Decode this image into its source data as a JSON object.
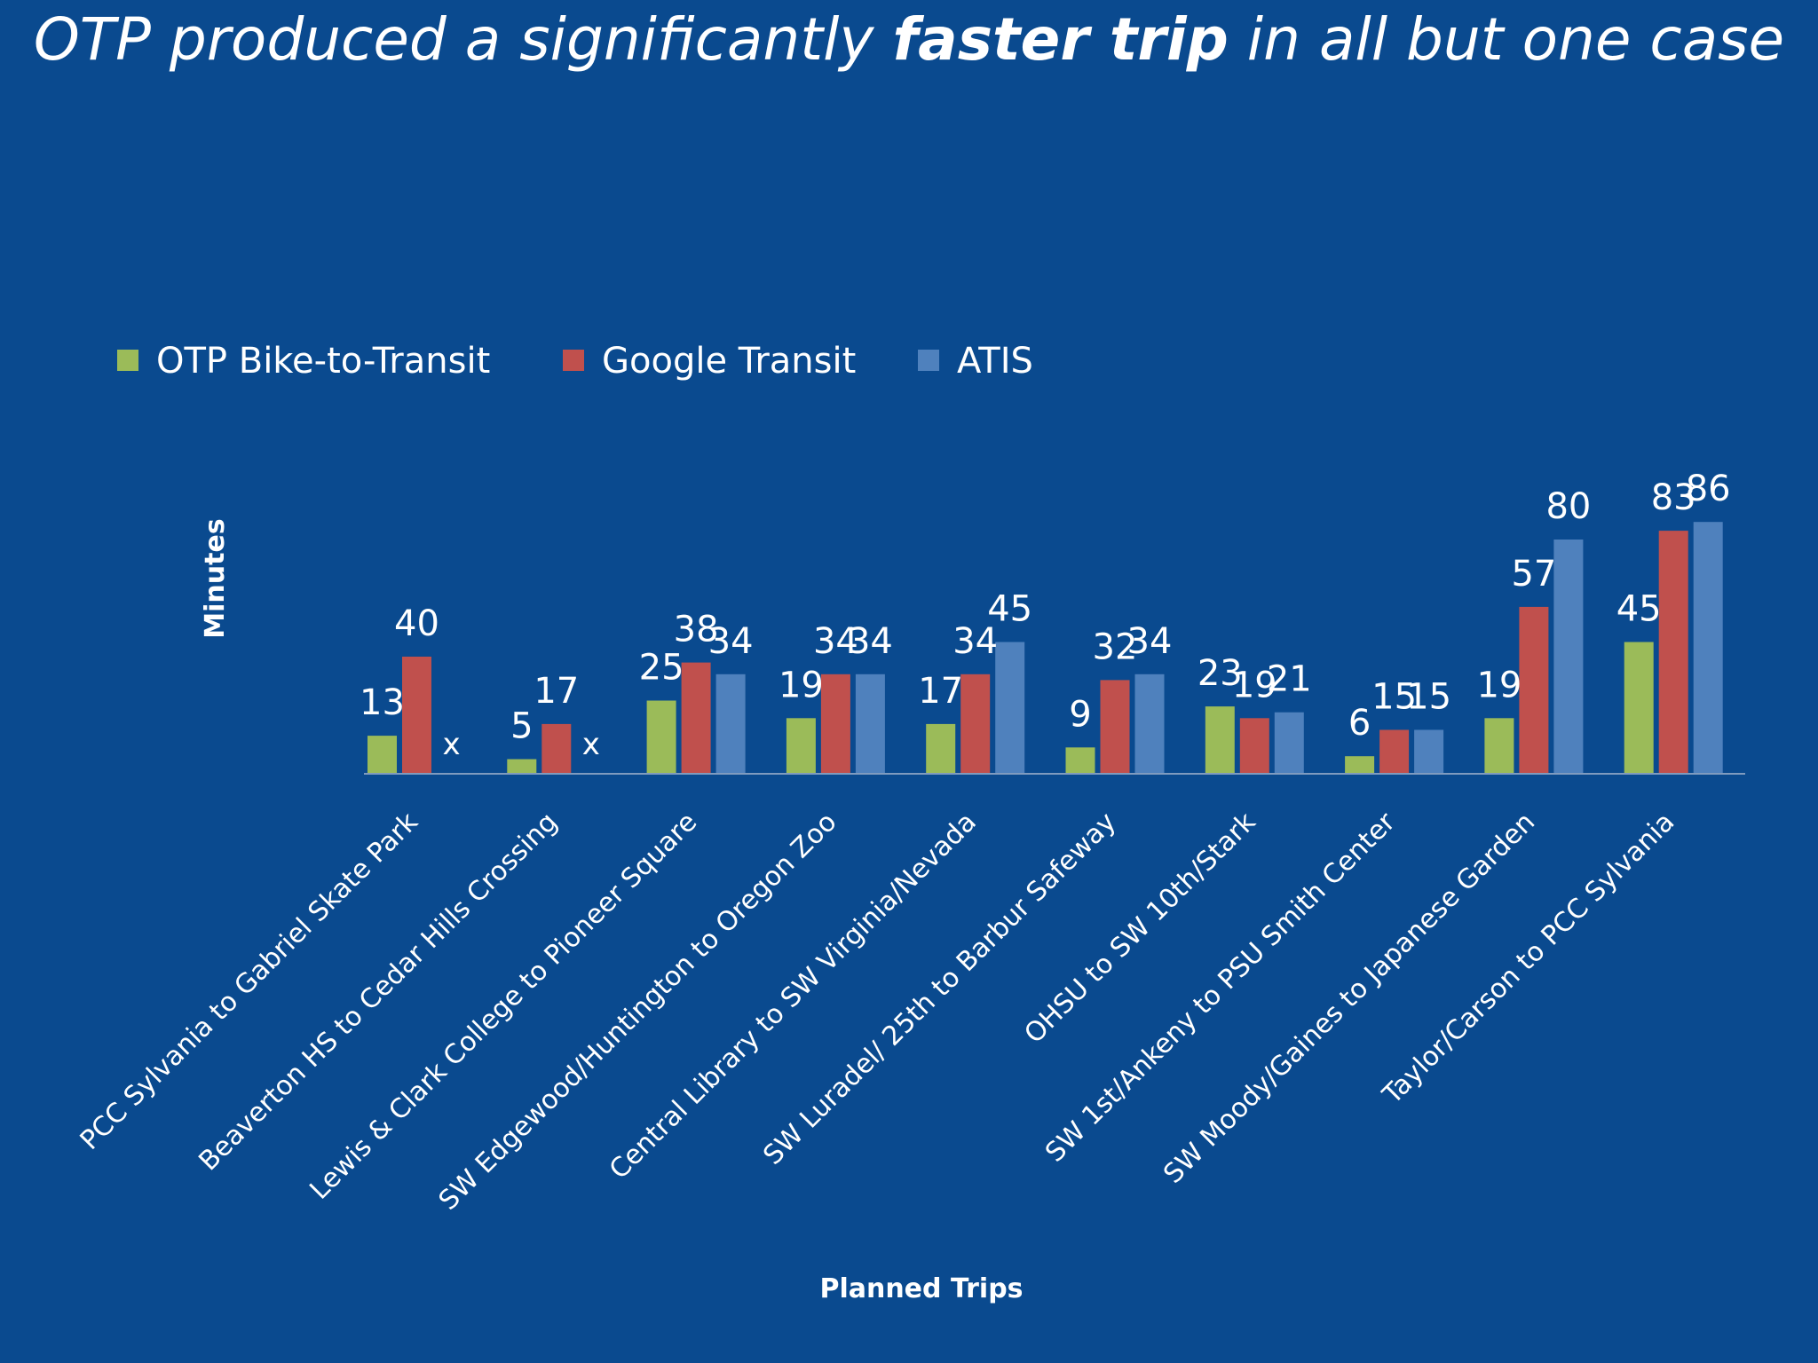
{
  "slide": {
    "title_before": "OTP produced a significantly ",
    "title_bold": "faster trip",
    "title_after": " in all but one case"
  },
  "chart_data": {
    "type": "bar",
    "title": "OTP produced a significantly faster trip in all but one case",
    "xlabel": "Planned Trips",
    "ylabel": "Minutes",
    "ylim": [
      0,
      86
    ],
    "grid": false,
    "legend_position": "top-left",
    "missing_marker": "x",
    "categories": [
      "PCC Sylvania to Gabriel Skate Park",
      "Beaverton HS to Cedar Hills Crossing",
      "Lewis & Clark College to Pioneer Square",
      "SW Edgewood/Huntington to Oregon Zoo",
      "Central Library to SW Virginia/Nevada",
      "SW Luradel/ 25th to Barbur Safeway",
      "OHSU to SW 10th/Stark",
      "SW 1st/Ankeny to PSU Smith Center",
      "SW Moody/Gaines to Japanese Garden",
      "Taylor/Carson to PCC Sylvania"
    ],
    "series": [
      {
        "name": "OTP Bike-to-Transit",
        "color": "#9bbb59",
        "values": [
          13,
          5,
          25,
          19,
          17,
          9,
          23,
          6,
          19,
          45
        ]
      },
      {
        "name": "Google Transit",
        "color": "#c0504d",
        "values": [
          40,
          17,
          38,
          34,
          34,
          32,
          19,
          15,
          57,
          83
        ]
      },
      {
        "name": "ATIS",
        "color": "#4f81bd",
        "values": [
          null,
          null,
          34,
          34,
          45,
          34,
          21,
          15,
          80,
          86
        ]
      }
    ]
  }
}
